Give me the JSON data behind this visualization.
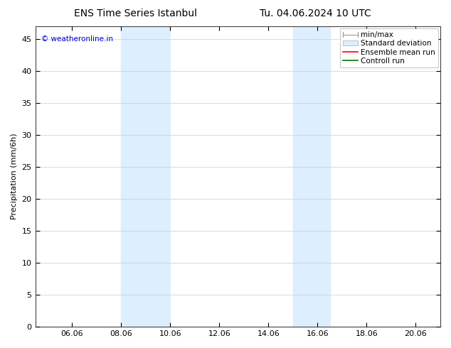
{
  "title_left": "ENS Time Series Istanbul",
  "title_right": "Tu. 04.06.2024 10 UTC",
  "ylabel": "Precipitation (mm/6h)",
  "watermark": "© weatheronline.in",
  "watermark_color": "#0000cc",
  "xlim": [
    4.5,
    21.0
  ],
  "ylim": [
    0,
    47
  ],
  "yticks": [
    0,
    5,
    10,
    15,
    20,
    25,
    30,
    35,
    40,
    45
  ],
  "xtick_labels": [
    "06.06",
    "08.06",
    "10.06",
    "12.06",
    "14.06",
    "16.06",
    "18.06",
    "20.06"
  ],
  "xtick_positions": [
    6,
    8,
    10,
    12,
    14,
    16,
    18,
    20
  ],
  "shaded_bands": [
    {
      "xmin": 8.0,
      "xmax": 10.0
    },
    {
      "xmin": 15.0,
      "xmax": 16.5
    }
  ],
  "shade_color": "#ddeeff",
  "bg_color": "#ffffff",
  "plot_bg_color": "#ffffff",
  "grid_color": "#cccccc",
  "title_fontsize": 10,
  "axis_label_fontsize": 8,
  "tick_fontsize": 8,
  "legend_fontsize": 7.5
}
